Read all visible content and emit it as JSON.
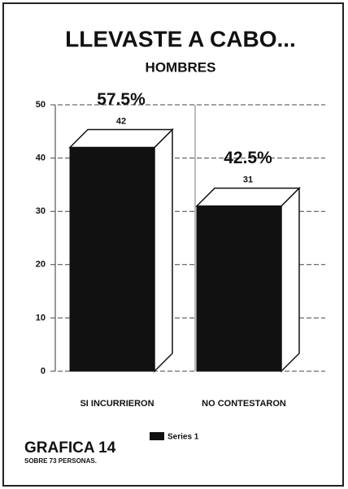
{
  "chart_data": {
    "type": "bar3d",
    "title": "LLEVASTE A CABO...",
    "subtitle": "HOMBRES",
    "categories": [
      "SI INCURRIERON",
      "NO CONTESTARON"
    ],
    "series": [
      {
        "name": "Series 1",
        "color": "#111111",
        "values": [
          42,
          31
        ]
      }
    ],
    "annotations": [
      "57.5%",
      "42.5%"
    ],
    "ylim": [
      0,
      50
    ],
    "yticks": [
      0,
      10,
      20,
      30,
      40,
      50
    ],
    "grid": true,
    "footer": {
      "title": "GRAFICA 14",
      "note": "SOBRE 73 PERSONAS."
    }
  }
}
